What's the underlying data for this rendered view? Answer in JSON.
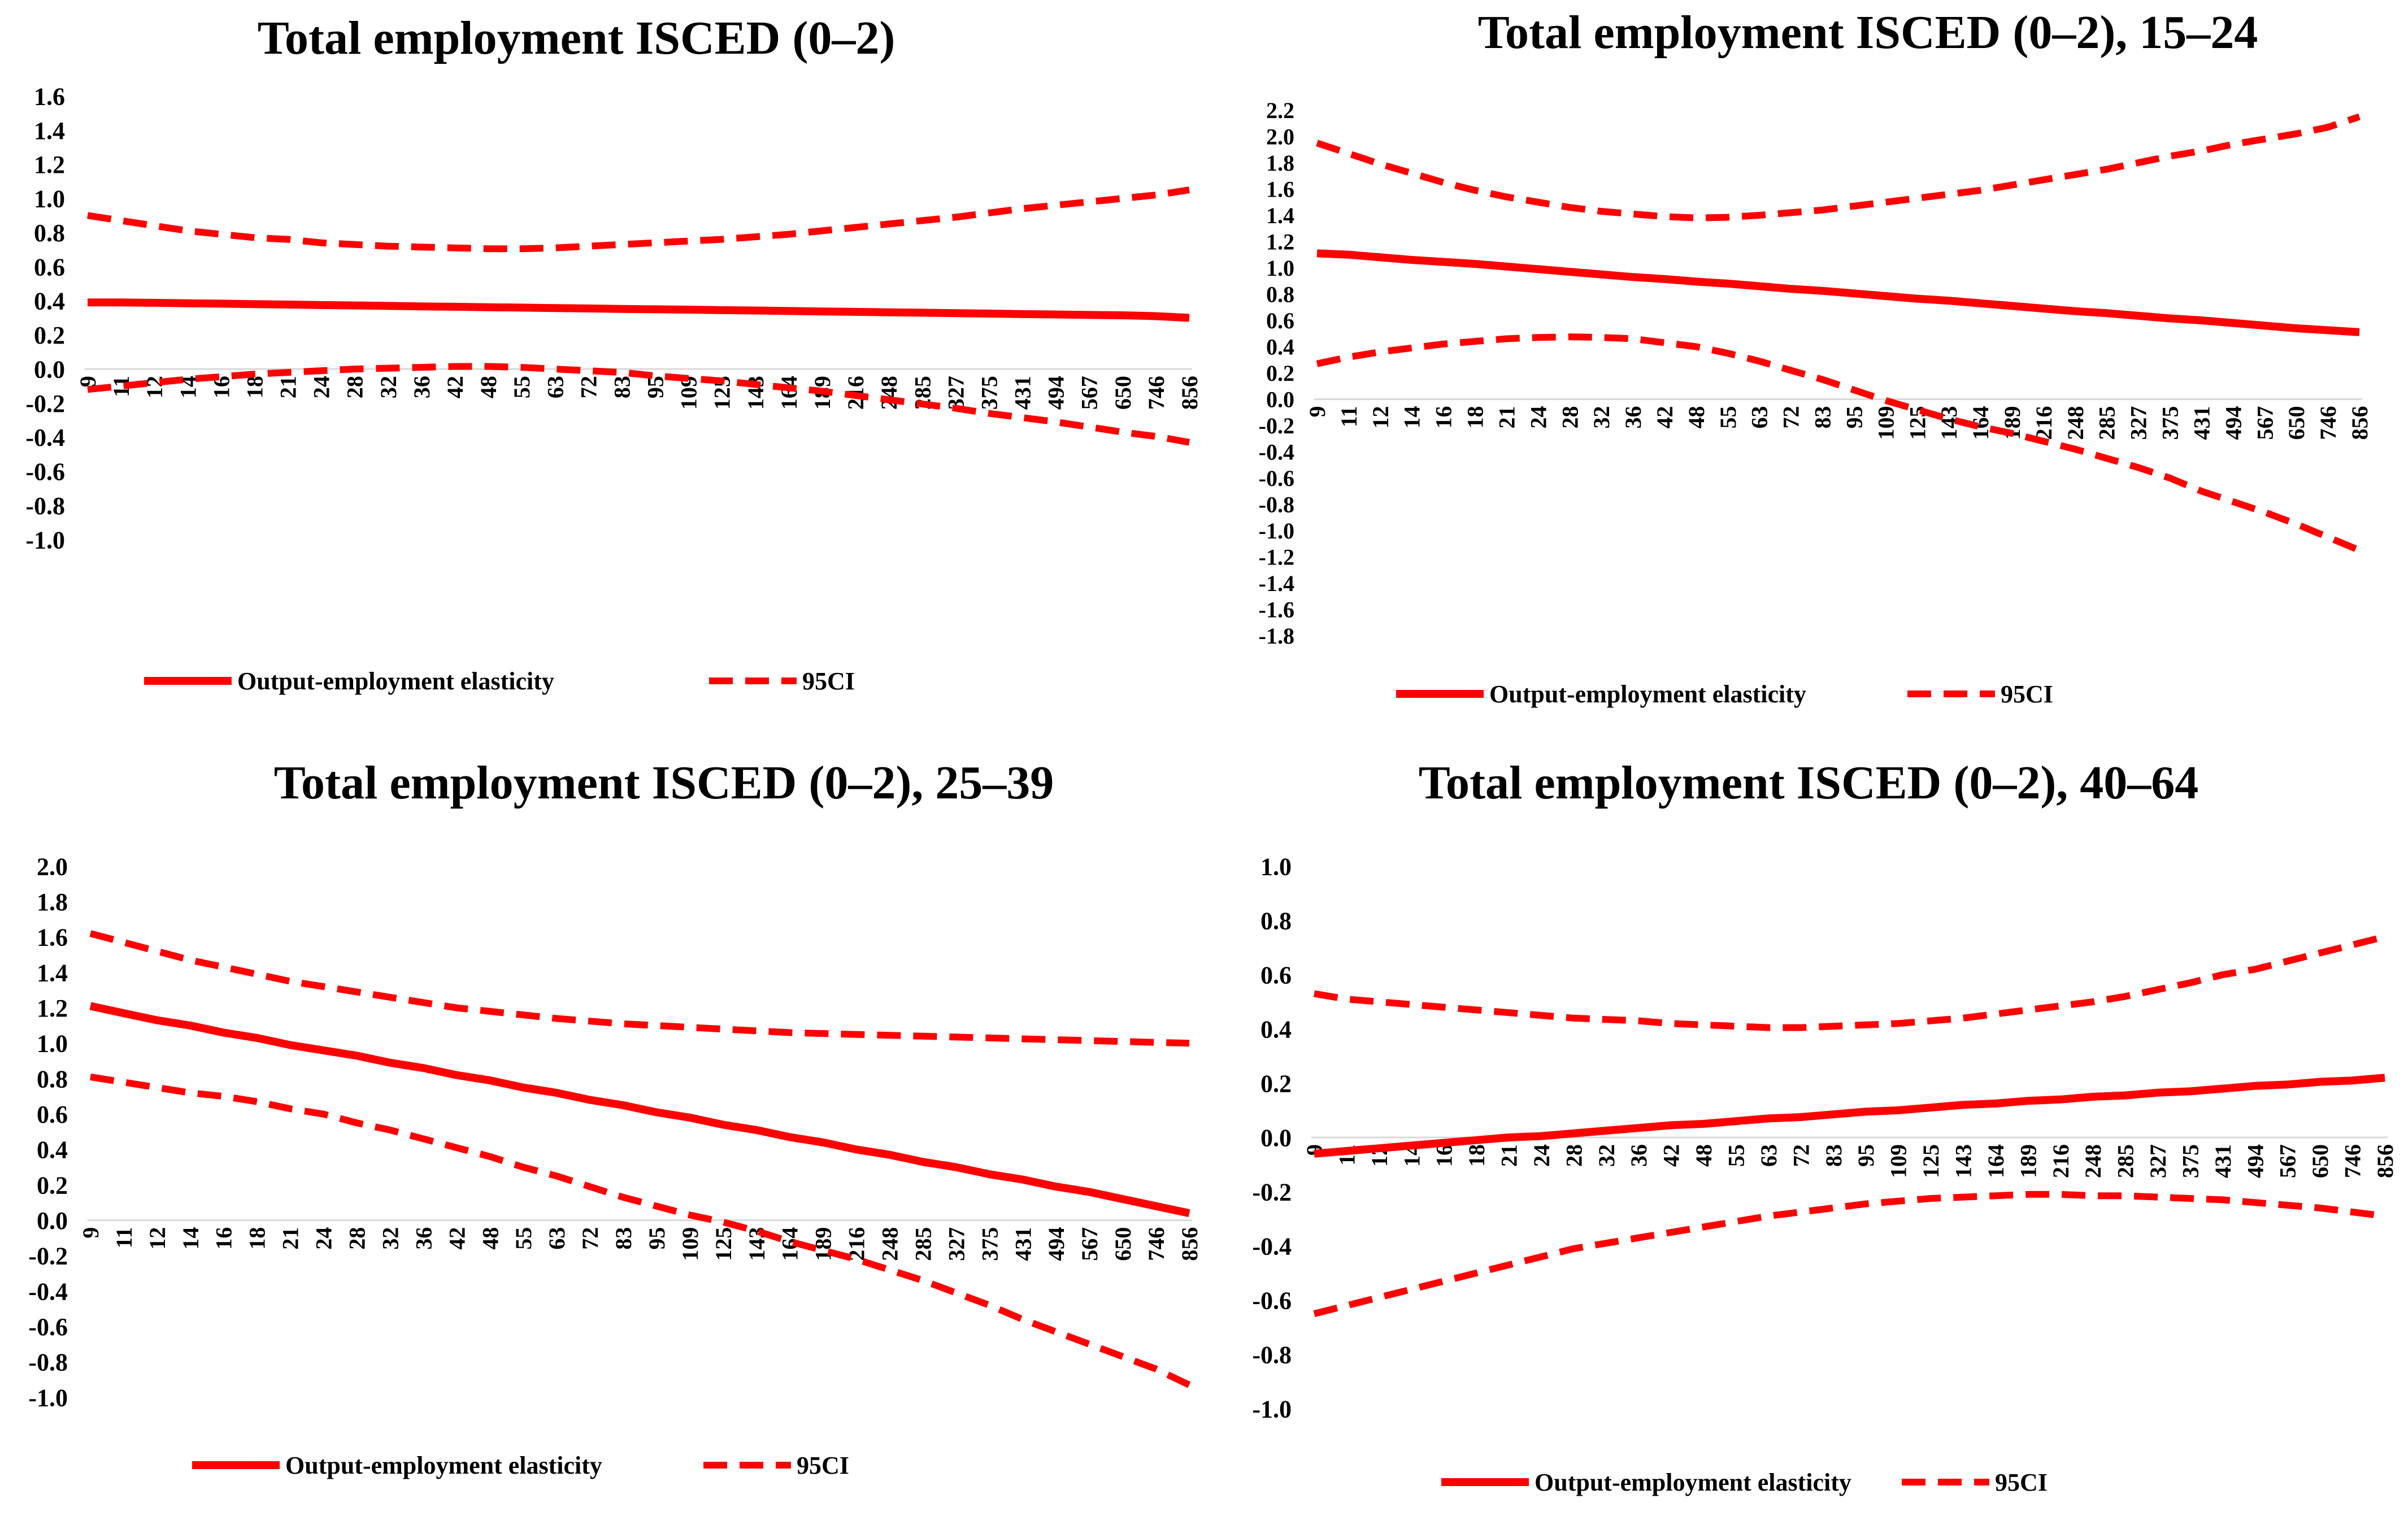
{
  "figure": {
    "line_color": "#ff0000",
    "legend": {
      "main_label": "Output-employment elasticity",
      "ci_label": "95CI"
    }
  },
  "chart_data": [
    {
      "type": "line",
      "title": "Total employment ISCED (0–2)",
      "xlabel": "",
      "ylabel": "",
      "categories": [
        "9",
        "11",
        "12",
        "14",
        "16",
        "18",
        "21",
        "24",
        "28",
        "32",
        "36",
        "42",
        "48",
        "55",
        "63",
        "72",
        "83",
        "95",
        "109",
        "125",
        "143",
        "164",
        "189",
        "216",
        "248",
        "285",
        "327",
        "375",
        "431",
        "494",
        "567",
        "650",
        "746",
        "856"
      ],
      "ylim": [
        -1.0,
        1.6
      ],
      "yticks": [
        "1.6",
        "1.4",
        "1.2",
        "1.0",
        "0.8",
        "0.6",
        "0.4",
        "0.2",
        "0.0",
        "-0.2",
        "-0.4",
        "-0.6",
        "-0.8",
        "-1.0"
      ],
      "series": [
        {
          "name": "Output-employment elasticity",
          "style": "solid",
          "values": [
            0.39,
            0.39,
            0.388,
            0.385,
            0.383,
            0.38,
            0.378,
            0.375,
            0.373,
            0.37,
            0.367,
            0.365,
            0.362,
            0.36,
            0.357,
            0.355,
            0.352,
            0.35,
            0.348,
            0.345,
            0.343,
            0.34,
            0.337,
            0.335,
            0.332,
            0.33,
            0.327,
            0.325,
            0.322,
            0.32,
            0.317,
            0.315,
            0.31,
            0.3
          ]
        },
        {
          "name": "95CI upper",
          "style": "dashed",
          "values": [
            0.9,
            0.87,
            0.84,
            0.81,
            0.79,
            0.77,
            0.76,
            0.74,
            0.73,
            0.72,
            0.715,
            0.71,
            0.705,
            0.705,
            0.71,
            0.72,
            0.73,
            0.74,
            0.75,
            0.76,
            0.775,
            0.79,
            0.81,
            0.83,
            0.85,
            0.87,
            0.89,
            0.915,
            0.94,
            0.96,
            0.98,
            1.0,
            1.02,
            1.05
          ]
        },
        {
          "name": "95CI lower",
          "style": "dashed",
          "values": [
            -0.12,
            -0.1,
            -0.08,
            -0.06,
            -0.045,
            -0.03,
            -0.02,
            -0.01,
            0.0,
            0.005,
            0.01,
            0.015,
            0.015,
            0.01,
            0.0,
            -0.01,
            -0.02,
            -0.04,
            -0.055,
            -0.07,
            -0.09,
            -0.11,
            -0.13,
            -0.155,
            -0.18,
            -0.205,
            -0.23,
            -0.26,
            -0.285,
            -0.31,
            -0.34,
            -0.37,
            -0.395,
            -0.43
          ]
        }
      ]
    },
    {
      "type": "line",
      "title": "Total employment ISCED (0–2), 15–24",
      "xlabel": "",
      "ylabel": "",
      "categories": [
        "9",
        "11",
        "12",
        "14",
        "16",
        "18",
        "21",
        "24",
        "28",
        "32",
        "36",
        "42",
        "48",
        "55",
        "63",
        "72",
        "83",
        "95",
        "109",
        "125",
        "143",
        "164",
        "189",
        "216",
        "248",
        "285",
        "327",
        "375",
        "431",
        "494",
        "567",
        "650",
        "746",
        "856"
      ],
      "ylim": [
        -1.8,
        2.2
      ],
      "yticks": [
        "2.2",
        "2.0",
        "1.8",
        "1.6",
        "1.4",
        "1.2",
        "1.0",
        "0.8",
        "0.6",
        "0.4",
        "0.2",
        "0.0",
        "-0.2",
        "-0.4",
        "-0.6",
        "-0.8",
        "-1.0",
        "-1.2",
        "-1.4",
        "-1.6",
        "-1.8"
      ],
      "series": [
        {
          "name": "Output-employment elasticity",
          "style": "solid",
          "values": [
            1.11,
            1.1,
            1.08,
            1.06,
            1.045,
            1.03,
            1.01,
            0.99,
            0.97,
            0.95,
            0.93,
            0.915,
            0.895,
            0.88,
            0.86,
            0.84,
            0.825,
            0.805,
            0.785,
            0.765,
            0.75,
            0.73,
            0.71,
            0.69,
            0.67,
            0.655,
            0.635,
            0.615,
            0.6,
            0.58,
            0.56,
            0.54,
            0.525,
            0.51
          ]
        },
        {
          "name": "95CI upper",
          "style": "dashed",
          "values": [
            1.95,
            1.87,
            1.79,
            1.72,
            1.65,
            1.59,
            1.54,
            1.5,
            1.46,
            1.43,
            1.41,
            1.39,
            1.38,
            1.385,
            1.4,
            1.42,
            1.44,
            1.47,
            1.5,
            1.53,
            1.56,
            1.59,
            1.63,
            1.67,
            1.71,
            1.75,
            1.8,
            1.85,
            1.89,
            1.94,
            1.98,
            2.02,
            2.07,
            2.15
          ]
        },
        {
          "name": "95CI lower",
          "style": "dashed",
          "values": [
            0.27,
            0.32,
            0.36,
            0.39,
            0.42,
            0.44,
            0.46,
            0.47,
            0.475,
            0.47,
            0.46,
            0.43,
            0.4,
            0.35,
            0.29,
            0.22,
            0.15,
            0.07,
            -0.01,
            -0.08,
            -0.15,
            -0.21,
            -0.26,
            -0.32,
            -0.38,
            -0.45,
            -0.52,
            -0.6,
            -0.7,
            -0.78,
            -0.86,
            -0.95,
            -1.05,
            -1.15
          ]
        }
      ]
    },
    {
      "type": "line",
      "title": "Total employment ISCED (0–2), 25–39",
      "xlabel": "",
      "ylabel": "",
      "categories": [
        "9",
        "11",
        "12",
        "14",
        "16",
        "18",
        "21",
        "24",
        "28",
        "32",
        "36",
        "42",
        "48",
        "55",
        "63",
        "72",
        "83",
        "95",
        "109",
        "125",
        "143",
        "164",
        "189",
        "216",
        "248",
        "285",
        "327",
        "375",
        "431",
        "494",
        "567",
        "650",
        "746",
        "856"
      ],
      "ylim": [
        -1.0,
        2.0
      ],
      "yticks": [
        "2.0",
        "1.8",
        "1.6",
        "1.4",
        "1.2",
        "1.0",
        "0.8",
        "0.6",
        "0.4",
        "0.2",
        "0.0",
        "-0.2",
        "-0.4",
        "-0.6",
        "-0.8",
        "-1.0"
      ],
      "series": [
        {
          "name": "Output-employment elasticity",
          "style": "solid",
          "values": [
            1.21,
            1.17,
            1.13,
            1.1,
            1.06,
            1.03,
            0.99,
            0.96,
            0.93,
            0.89,
            0.86,
            0.82,
            0.79,
            0.75,
            0.72,
            0.68,
            0.65,
            0.61,
            0.58,
            0.54,
            0.51,
            0.47,
            0.44,
            0.4,
            0.37,
            0.33,
            0.3,
            0.26,
            0.23,
            0.19,
            0.16,
            0.12,
            0.08,
            0.04
          ]
        },
        {
          "name": "95CI upper",
          "style": "dashed",
          "values": [
            1.62,
            1.57,
            1.52,
            1.47,
            1.43,
            1.39,
            1.35,
            1.32,
            1.29,
            1.26,
            1.23,
            1.2,
            1.18,
            1.16,
            1.14,
            1.125,
            1.11,
            1.1,
            1.09,
            1.08,
            1.07,
            1.06,
            1.055,
            1.05,
            1.045,
            1.04,
            1.035,
            1.03,
            1.025,
            1.02,
            1.015,
            1.01,
            1.005,
            1.0
          ]
        },
        {
          "name": "95CI lower",
          "style": "dashed",
          "values": [
            0.81,
            0.78,
            0.75,
            0.72,
            0.7,
            0.67,
            0.63,
            0.6,
            0.55,
            0.51,
            0.46,
            0.41,
            0.36,
            0.3,
            0.25,
            0.19,
            0.13,
            0.08,
            0.03,
            -0.01,
            -0.06,
            -0.12,
            -0.17,
            -0.22,
            -0.28,
            -0.34,
            -0.41,
            -0.48,
            -0.56,
            -0.63,
            -0.7,
            -0.77,
            -0.84,
            -0.93
          ]
        }
      ]
    },
    {
      "type": "line",
      "title": "Total employment ISCED (0–2), 40–64",
      "xlabel": "",
      "ylabel": "",
      "categories": [
        "9",
        "11",
        "12",
        "14",
        "16",
        "18",
        "21",
        "24",
        "28",
        "32",
        "36",
        "42",
        "48",
        "55",
        "63",
        "72",
        "83",
        "95",
        "109",
        "125",
        "143",
        "164",
        "189",
        "216",
        "248",
        "285",
        "327",
        "375",
        "431",
        "494",
        "567",
        "650",
        "746",
        "856"
      ],
      "ylim": [
        -1.0,
        1.0
      ],
      "yticks": [
        "1.0",
        "0.8",
        "0.6",
        "0.4",
        "0.2",
        "0.0",
        "-0.2",
        "-0.4",
        "-0.6",
        "-0.8",
        "-1.0"
      ],
      "series": [
        {
          "name": "Output-employment elasticity",
          "style": "solid",
          "values": [
            -0.06,
            -0.05,
            -0.04,
            -0.03,
            -0.02,
            -0.01,
            0.0,
            0.005,
            0.015,
            0.025,
            0.035,
            0.045,
            0.05,
            0.06,
            0.07,
            0.075,
            0.085,
            0.095,
            0.1,
            0.11,
            0.12,
            0.125,
            0.135,
            0.14,
            0.15,
            0.155,
            0.165,
            0.17,
            0.18,
            0.19,
            0.195,
            0.205,
            0.21,
            0.22
          ]
        },
        {
          "name": "95CI upper",
          "style": "dashed",
          "values": [
            0.53,
            0.51,
            0.5,
            0.49,
            0.48,
            0.47,
            0.46,
            0.45,
            0.44,
            0.435,
            0.43,
            0.42,
            0.415,
            0.41,
            0.405,
            0.405,
            0.41,
            0.415,
            0.42,
            0.43,
            0.44,
            0.455,
            0.47,
            0.485,
            0.5,
            0.52,
            0.545,
            0.57,
            0.6,
            0.62,
            0.65,
            0.68,
            0.71,
            0.74
          ]
        },
        {
          "name": "95CI lower",
          "style": "dashed",
          "values": [
            -0.65,
            -0.62,
            -0.59,
            -0.56,
            -0.53,
            -0.5,
            -0.47,
            -0.44,
            -0.41,
            -0.39,
            -0.37,
            -0.35,
            -0.33,
            -0.31,
            -0.29,
            -0.275,
            -0.26,
            -0.245,
            -0.235,
            -0.225,
            -0.22,
            -0.215,
            -0.21,
            -0.21,
            -0.215,
            -0.215,
            -0.22,
            -0.225,
            -0.23,
            -0.24,
            -0.25,
            -0.26,
            -0.275,
            -0.29
          ]
        }
      ]
    }
  ]
}
